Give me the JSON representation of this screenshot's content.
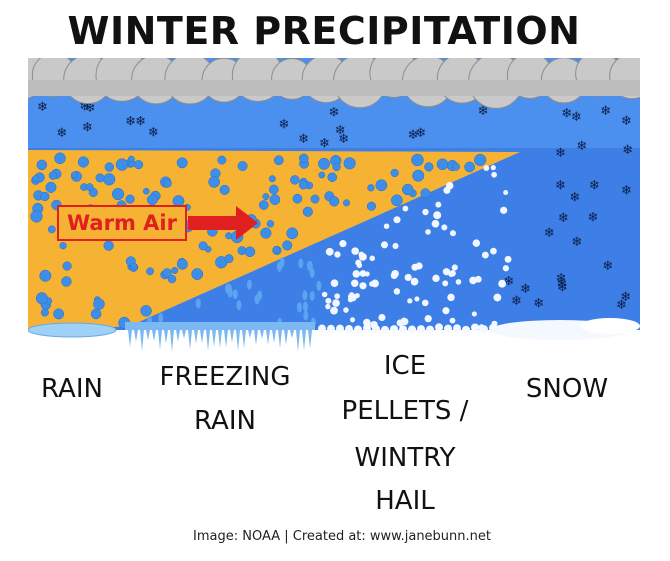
{
  "header": {
    "title": "WINTER PRECIPITATION"
  },
  "diagram": {
    "warm_air_label": "Warm Air"
  },
  "zones": [
    {
      "lines": [
        "RAIN"
      ]
    },
    {
      "lines": [
        "FREEZING",
        "RAIN"
      ]
    },
    {
      "lines": [
        "ICE",
        "PELLETS /",
        "WINTRY",
        "HAIL"
      ]
    },
    {
      "lines": [
        "SNOW"
      ]
    }
  ],
  "footer": {
    "credit": "Image: NOAA | Created at: www.janebunn.net"
  }
}
